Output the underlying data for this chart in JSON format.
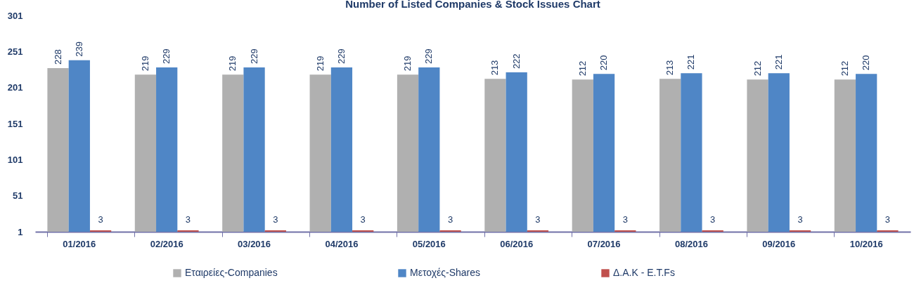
{
  "chart_data": {
    "type": "bar",
    "title": "Number of Listed Companies & Stock Issues Chart",
    "categories": [
      "01/2016",
      "02/2016",
      "03/2016",
      "04/2016",
      "05/2016",
      "06/2016",
      "07/2016",
      "08/2016",
      "09/2016",
      "10/2016"
    ],
    "series": [
      {
        "name": "Εταιρείες-Companies",
        "color": "#b0b0b0",
        "values": [
          228,
          219,
          219,
          219,
          219,
          213,
          212,
          213,
          212,
          212
        ]
      },
      {
        "name": "Μετοχές-Shares",
        "color": "#4f86c6",
        "values": [
          239,
          229,
          229,
          229,
          229,
          222,
          220,
          221,
          221,
          220
        ]
      },
      {
        "name": "Δ.Α.Κ - E.T.Fs",
        "color": "#c0504d",
        "values": [
          3,
          3,
          3,
          3,
          3,
          3,
          3,
          3,
          3,
          3
        ]
      }
    ],
    "ylim": [
      1,
      301
    ],
    "yticks": [
      1,
      51,
      101,
      151,
      201,
      251,
      301
    ],
    "data_labels": true,
    "legend": "bottom",
    "grid": false
  }
}
